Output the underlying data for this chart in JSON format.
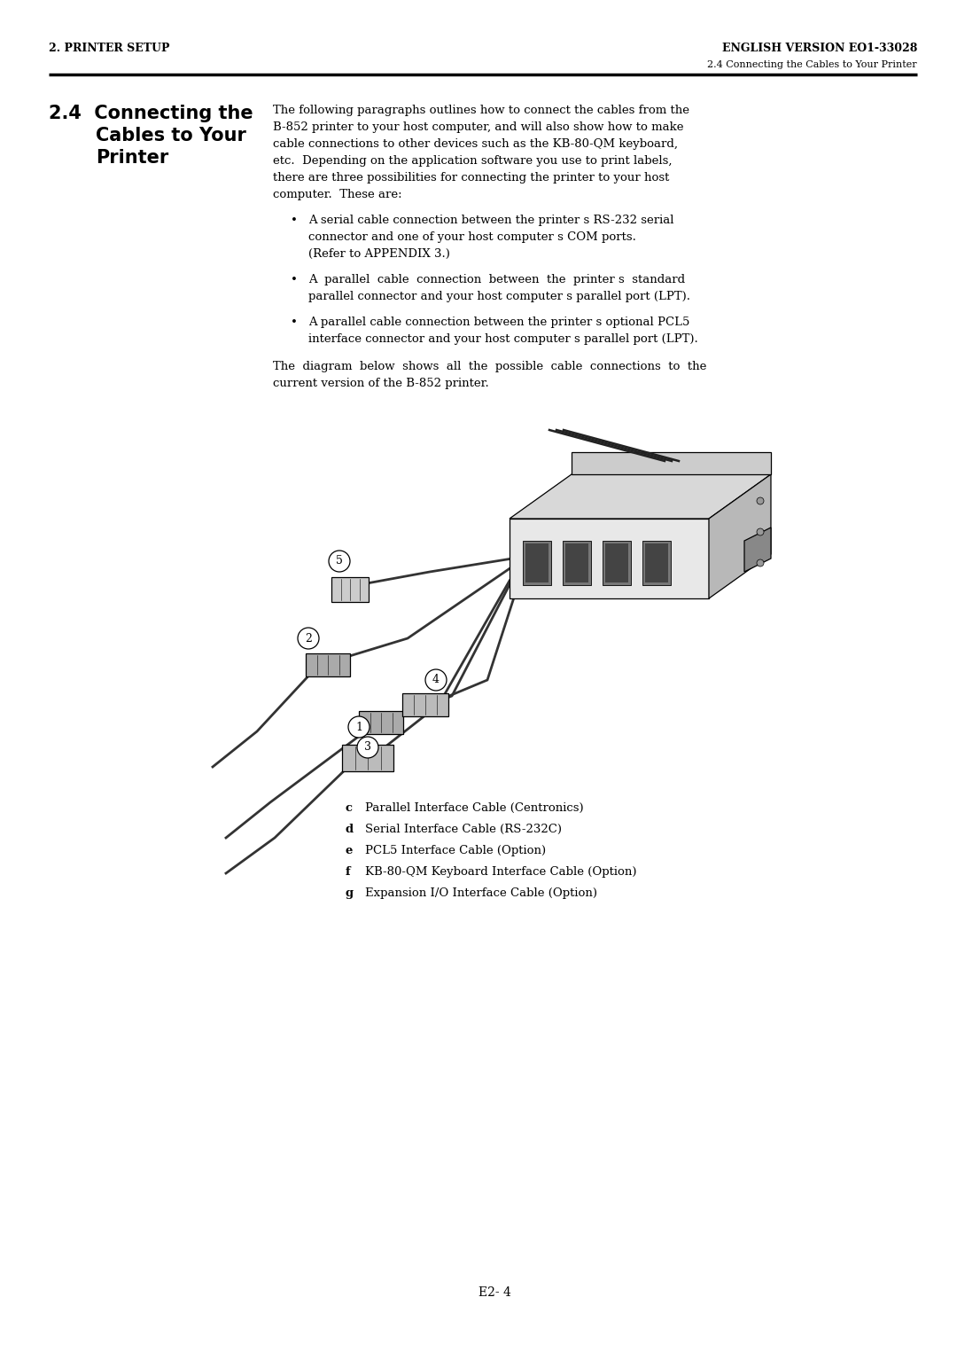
{
  "bg_color": "#ffffff",
  "text_color": "#000000",
  "header_left": "2. PRINTER SETUP",
  "header_right": "ENGLISH VERSION EO1-33028",
  "header_sub": "2.4 Connecting the Cables to Your Printer",
  "section_number": "2.4",
  "section_title_line1": "Connecting the",
  "section_title_line2": "Cables to Your",
  "section_title_line3": "Printer",
  "intro_lines": [
    "The following paragraphs outlines how to connect the cables from the",
    "B-852 printer to your host computer, and will also show how to make",
    "cable connections to other devices such as the KB-80-QM keyboard,",
    "etc.  Depending on the application software you use to print labels,",
    "there are three possibilities for connecting the printer to your host",
    "computer.  These are:"
  ],
  "bullet1_lines": [
    "A serial cable connection between the printer s RS-232 serial",
    "connector and one of your host computer s COM ports.",
    "(Refer to APPENDIX 3.)"
  ],
  "bullet2_lines": [
    "A  parallel  cable  connection  between  the  printer s  standard",
    "parallel connector and your host computer s parallel port (LPT)."
  ],
  "bullet3_lines": [
    "A parallel cable connection between the printer s optional PCL5",
    "interface connector and your host computer s parallel port (LPT)."
  ],
  "caption_lines": [
    "The  diagram  below  shows  all  the  possible  cable  connections  to  the",
    "current version of the B-852 printer."
  ],
  "legend_items": [
    {
      "key": "c",
      "text": "Parallel Interface Cable (Centronics)"
    },
    {
      "key": "d",
      "text": "Serial Interface Cable (RS-232C)"
    },
    {
      "key": "e",
      "text": "PCL5 Interface Cable (Option)"
    },
    {
      "key": "f",
      "text": "KB-80-QM Keyboard Interface Cable (Option)"
    },
    {
      "key": "g",
      "text": "Expansion I/O Interface Cable (Option)"
    }
  ],
  "page_number": "E2- 4",
  "rule_color": "#000000",
  "cable_color": "#333333",
  "printer_front_color": "#e8e8e8",
  "printer_top_color": "#d8d8d8",
  "printer_side_color": "#b8b8b8",
  "connector_color": "#aaaaaa"
}
